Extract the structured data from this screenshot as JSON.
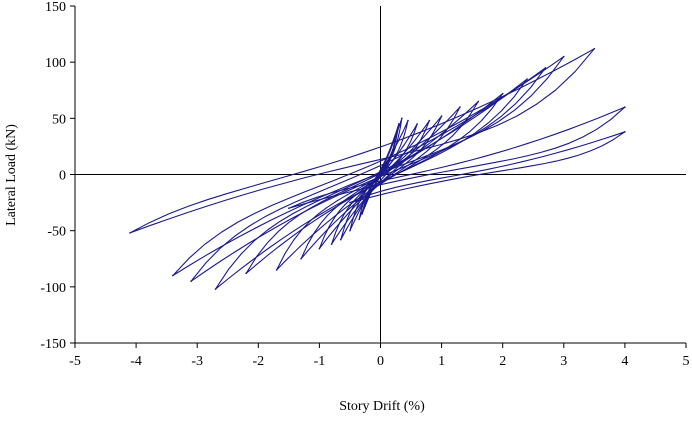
{
  "chart_data": {
    "type": "line",
    "title": "",
    "xlabel": "Story Drift (%)",
    "ylabel": "Lateral Load (kN)",
    "xlim": [
      -5,
      5
    ],
    "ylim": [
      -150,
      150
    ],
    "x_ticks": [
      -5,
      -4,
      -3,
      -2,
      -1,
      0,
      1,
      2,
      3,
      4,
      5
    ],
    "y_ticks": [
      -150,
      -100,
      -50,
      0,
      50,
      100,
      150
    ],
    "x_tick_labels": [
      "-5",
      "-4",
      "-3",
      "-2",
      "-1",
      "0",
      "1",
      "2",
      "3",
      "4",
      "5"
    ],
    "y_tick_labels": [
      "-150",
      "-100",
      "-50",
      "0",
      "50",
      "100",
      "150"
    ],
    "grid": false,
    "legend": "none",
    "line_color": "#1a1a8c",
    "series": [
      {
        "cycles": [
          {
            "pos": [
              0.2,
              22
            ],
            "neg": [
              -0.2,
              -20
            ]
          },
          {
            "pos": [
              0.25,
              35
            ],
            "neg": [
              -0.25,
              -28
            ]
          },
          {
            "pos": [
              0.3,
              45
            ],
            "neg": [
              -0.3,
              -35
            ]
          },
          {
            "pos": [
              0.35,
              50
            ],
            "neg": [
              -0.35,
              -40
            ]
          },
          {
            "pos": [
              0.45,
              48
            ],
            "neg": [
              -0.5,
              -50
            ]
          },
          {
            "pos": [
              0.6,
              45
            ],
            "neg": [
              -0.65,
              -58
            ]
          },
          {
            "pos": [
              0.8,
              48
            ],
            "neg": [
              -0.8,
              -62
            ]
          },
          {
            "pos": [
              1.0,
              52
            ],
            "neg": [
              -1.0,
              -66
            ]
          },
          {
            "pos": [
              1.3,
              60
            ],
            "neg": [
              -1.3,
              -75
            ]
          },
          {
            "pos": [
              1.6,
              65
            ],
            "neg": [
              -1.7,
              -85
            ]
          },
          {
            "pos": [
              2.0,
              72
            ],
            "neg": [
              -2.2,
              -88
            ]
          },
          {
            "pos": [
              2.4,
              85
            ],
            "neg": [
              -2.7,
              -102
            ]
          },
          {
            "pos": [
              2.7,
              95
            ],
            "neg": [
              -3.1,
              -95
            ]
          },
          {
            "pos": [
              3.0,
              105
            ],
            "neg": [
              -3.4,
              -90
            ]
          },
          {
            "pos": [
              3.5,
              112
            ],
            "neg": [
              -4.1,
              -52
            ]
          },
          {
            "pos": [
              4.0,
              60
            ],
            "neg": [
              -1.5,
              -30
            ]
          },
          {
            "pos": [
              4.0,
              38
            ],
            "neg": [
              -0.5,
              -25
            ]
          }
        ]
      }
    ]
  }
}
